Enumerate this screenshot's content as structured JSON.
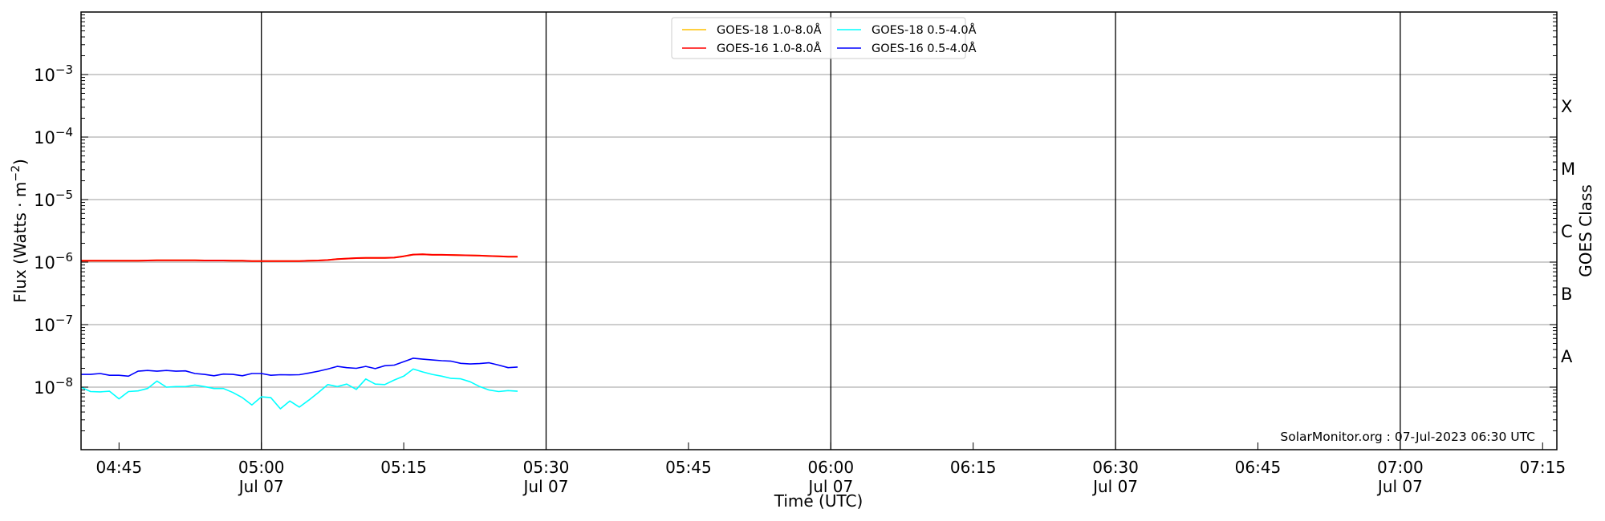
{
  "chart_data": {
    "type": "line",
    "title": "",
    "xlabel": "Time (UTC)",
    "ylabel": "Flux (Watts · m⁻²)",
    "ylabel_right": "GOES Class",
    "yscale": "log",
    "ylim": [
      1e-09,
      0.01
    ],
    "xlim": [
      "04:41",
      "07:16:30"
    ],
    "grid": "horizontal at each decade; vertical lines every 30 min",
    "legend_placement": "top-center",
    "y_ticks": [
      {
        "value": 1e-08,
        "base": "10",
        "exp": "−8"
      },
      {
        "value": 1e-07,
        "base": "10",
        "exp": "−7"
      },
      {
        "value": 1e-06,
        "base": "10",
        "exp": "−6"
      },
      {
        "value": 1e-05,
        "base": "10",
        "exp": "−5"
      },
      {
        "value": 0.0001,
        "base": "10",
        "exp": "−4"
      },
      {
        "value": 0.001,
        "base": "10",
        "exp": "−3"
      }
    ],
    "x_ticks": [
      {
        "time": "04:45",
        "label": "04:45",
        "sub": ""
      },
      {
        "time": "05:00",
        "label": "05:00",
        "sub": "Jul 07"
      },
      {
        "time": "05:15",
        "label": "05:15",
        "sub": ""
      },
      {
        "time": "05:30",
        "label": "05:30",
        "sub": "Jul 07"
      },
      {
        "time": "05:45",
        "label": "05:45",
        "sub": ""
      },
      {
        "time": "06:00",
        "label": "06:00",
        "sub": "Jul 07"
      },
      {
        "time": "06:15",
        "label": "06:15",
        "sub": ""
      },
      {
        "time": "06:30",
        "label": "06:30",
        "sub": "Jul 07"
      },
      {
        "time": "06:45",
        "label": "06:45",
        "sub": ""
      },
      {
        "time": "07:00",
        "label": "07:00",
        "sub": "Jul 07"
      },
      {
        "time": "07:15",
        "label": "07:15",
        "sub": ""
      }
    ],
    "vertical_lines": [
      "05:00",
      "05:30",
      "06:00",
      "06:30",
      "07:00"
    ],
    "goes_classes": [
      {
        "label": "A",
        "value": 3.16e-08
      },
      {
        "label": "B",
        "value": 3.16e-07
      },
      {
        "label": "C",
        "value": 3.16e-06
      },
      {
        "label": "M",
        "value": 3.16e-05
      },
      {
        "label": "X",
        "value": 0.000316
      }
    ],
    "x": [
      "04:41",
      "04:42",
      "04:43",
      "04:44",
      "04:45",
      "04:46",
      "04:47",
      "04:48",
      "04:49",
      "04:50",
      "04:51",
      "04:52",
      "04:53",
      "04:54",
      "04:55",
      "04:56",
      "04:57",
      "04:58",
      "04:59",
      "05:00",
      "05:01",
      "05:02",
      "05:03",
      "05:04",
      "05:05",
      "05:06",
      "05:07",
      "05:08",
      "05:09",
      "05:10",
      "05:11",
      "05:12",
      "05:13",
      "05:14",
      "05:15",
      "05:16",
      "05:17",
      "05:18",
      "05:19",
      "05:20",
      "05:21",
      "05:22",
      "05:23",
      "05:24",
      "05:25",
      "05:26",
      "05:27"
    ],
    "series": [
      {
        "name": "GOES-18 1.0-8.0Å",
        "color": "#ffc000",
        "legend_only": false,
        "values": [
          1.05e-06,
          1.05e-06,
          1.05e-06,
          1.05e-06,
          1.05e-06,
          1.05e-06,
          1.05e-06,
          1.06e-06,
          1.07e-06,
          1.07e-06,
          1.07e-06,
          1.07e-06,
          1.07e-06,
          1.06e-06,
          1.06e-06,
          1.06e-06,
          1.05e-06,
          1.05e-06,
          1.04e-06,
          1.04e-06,
          1.04e-06,
          1.04e-06,
          1.04e-06,
          1.04e-06,
          1.05e-06,
          1.06e-06,
          1.08e-06,
          1.12e-06,
          1.14e-06,
          1.16e-06,
          1.17e-06,
          1.17e-06,
          1.17e-06,
          1.18e-06,
          1.24e-06,
          1.32e-06,
          1.33e-06,
          1.31e-06,
          1.31e-06,
          1.3e-06,
          1.29e-06,
          1.28e-06,
          1.27e-06,
          1.25e-06,
          1.24e-06,
          1.22e-06,
          1.22e-06
        ]
      },
      {
        "name": "GOES-16 1.0-8.0Å",
        "color": "#ff0000",
        "values": [
          1.05e-06,
          1.05e-06,
          1.05e-06,
          1.05e-06,
          1.05e-06,
          1.05e-06,
          1.05e-06,
          1.06e-06,
          1.07e-06,
          1.07e-06,
          1.07e-06,
          1.07e-06,
          1.07e-06,
          1.06e-06,
          1.06e-06,
          1.06e-06,
          1.05e-06,
          1.05e-06,
          1.04e-06,
          1.04e-06,
          1.04e-06,
          1.04e-06,
          1.04e-06,
          1.04e-06,
          1.05e-06,
          1.06e-06,
          1.08e-06,
          1.12e-06,
          1.14e-06,
          1.16e-06,
          1.17e-06,
          1.17e-06,
          1.17e-06,
          1.18e-06,
          1.24e-06,
          1.32e-06,
          1.33e-06,
          1.31e-06,
          1.31e-06,
          1.3e-06,
          1.29e-06,
          1.28e-06,
          1.27e-06,
          1.25e-06,
          1.24e-06,
          1.22e-06,
          1.22e-06
        ]
      },
      {
        "name": "GOES-18 0.5-4.0Å",
        "color": "#00ffff",
        "values": [
          1e-08,
          8.5e-09,
          8.4e-09,
          8.6e-09,
          6.5e-09,
          8.5e-09,
          8.7e-09,
          9.5e-09,
          1.25e-08,
          1e-08,
          1.02e-08,
          1.02e-08,
          1.08e-08,
          1.02e-08,
          9.5e-09,
          9.5e-09,
          8.2e-09,
          6.8e-09,
          5.2e-09,
          7e-09,
          6.8e-09,
          4.5e-09,
          6e-09,
          4.8e-09,
          6.2e-09,
          8.2e-09,
          1.1e-08,
          1.02e-08,
          1.12e-08,
          9.2e-09,
          1.35e-08,
          1.12e-08,
          1.1e-08,
          1.3e-08,
          1.5e-08,
          1.95e-08,
          1.75e-08,
          1.6e-08,
          1.5e-08,
          1.38e-08,
          1.36e-08,
          1.22e-08,
          1.02e-08,
          9e-09,
          8.5e-09,
          8.8e-09,
          8.6e-09
        ]
      },
      {
        "name": "GOES-16 0.5-4.0Å",
        "color": "#0000ff",
        "values": [
          1.6e-08,
          1.6e-08,
          1.65e-08,
          1.55e-08,
          1.55e-08,
          1.5e-08,
          1.8e-08,
          1.85e-08,
          1.8e-08,
          1.85e-08,
          1.8e-08,
          1.82e-08,
          1.65e-08,
          1.6e-08,
          1.52e-08,
          1.62e-08,
          1.6e-08,
          1.52e-08,
          1.65e-08,
          1.65e-08,
          1.55e-08,
          1.58e-08,
          1.57e-08,
          1.58e-08,
          1.68e-08,
          1.8e-08,
          1.95e-08,
          2.15e-08,
          2.05e-08,
          2e-08,
          2.15e-08,
          1.98e-08,
          2.2e-08,
          2.25e-08,
          2.55e-08,
          2.9e-08,
          2.8e-08,
          2.72e-08,
          2.65e-08,
          2.6e-08,
          2.4e-08,
          2.35e-08,
          2.38e-08,
          2.45e-08,
          2.25e-08,
          2.05e-08,
          2.1e-08
        ]
      }
    ],
    "annotation": "SolarMonitor.org : 07-Jul-2023 06:30 UTC"
  }
}
